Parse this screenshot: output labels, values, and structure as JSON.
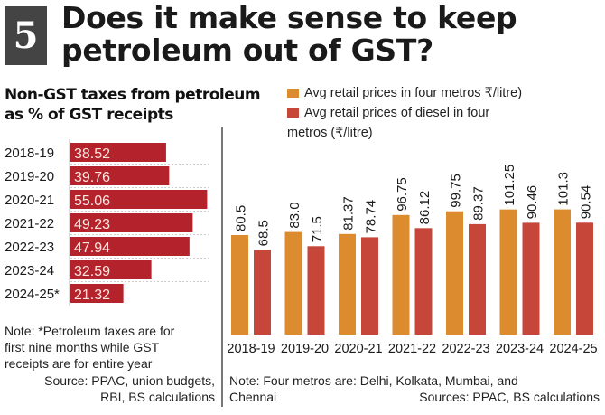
{
  "header": {
    "number": "5",
    "title_line1": "Does it make sense to keep",
    "title_line2": "petroleum out of GST?"
  },
  "colors": {
    "left_bar": "#b4232b",
    "petrol": "#dc8c2e",
    "diesel": "#c6473a",
    "text": "#1a1a1a"
  },
  "chart_data": [
    {
      "type": "bar",
      "orientation": "horizontal",
      "title": "Non-GST taxes from petroleum as % of GST receipts",
      "title_line1": "Non-GST taxes from petroleum",
      "title_line2": "as % of GST receipts",
      "categories": [
        "2018-19",
        "2019-20",
        "2020-21",
        "2021-22",
        "2022-23",
        "2023-24",
        "2024-25*"
      ],
      "values": [
        38.52,
        39.76,
        55.06,
        49.23,
        47.94,
        32.59,
        21.32
      ],
      "value_labels": [
        "38.52",
        "39.76",
        "55.06",
        "49.23",
        "47.94",
        "32.59",
        "21.32"
      ],
      "xlim": [
        0,
        56
      ],
      "grid": false,
      "note_lines": [
        "Note: *Petroleum taxes  are for",
        "first nine months while GST",
        "receipts are for entire year"
      ],
      "source_lines": [
        "Source: PPAC, union budgets,",
        "RBI, BS calculations"
      ]
    },
    {
      "type": "bar",
      "orientation": "vertical",
      "title": "",
      "categories": [
        "2018-19",
        "2019-20",
        "2020-21",
        "2021-22",
        "2022-23",
        "2023-24",
        "2024-25"
      ],
      "series": [
        {
          "name": "Avg retail prices in four metros ₹/litre)",
          "values": [
            80.5,
            83.0,
            81.37,
            96.75,
            99.75,
            101.25,
            101.3
          ],
          "labels": [
            "80.5",
            "83.0",
            "81.37",
            "96.75",
            "99.75",
            "101.25",
            "101.3"
          ]
        },
        {
          "name": "Avg retail prices of diesel in four metros (₹/litre)",
          "values": [
            68.5,
            71.5,
            78.74,
            86.12,
            89.37,
            90.46,
            90.54
          ],
          "labels": [
            "68.5",
            "71.5",
            "78.74",
            "86.12",
            "89.37",
            "90.46",
            "90.54"
          ]
        }
      ],
      "legend": {
        "placement": "top",
        "item1": "Avg retail prices in four metros ₹/litre)",
        "item2_line1": "Avg retail prices of diesel in four",
        "item2_line2": "metros (₹/litre)"
      },
      "ylim": [
        0,
        110
      ],
      "grid": false,
      "note_line1": "Note: Four metros are: Delhi, Kolkata, Mumbai, and",
      "note_line2": "Chennai",
      "source": "Sources: PPAC, BS calculations"
    }
  ]
}
